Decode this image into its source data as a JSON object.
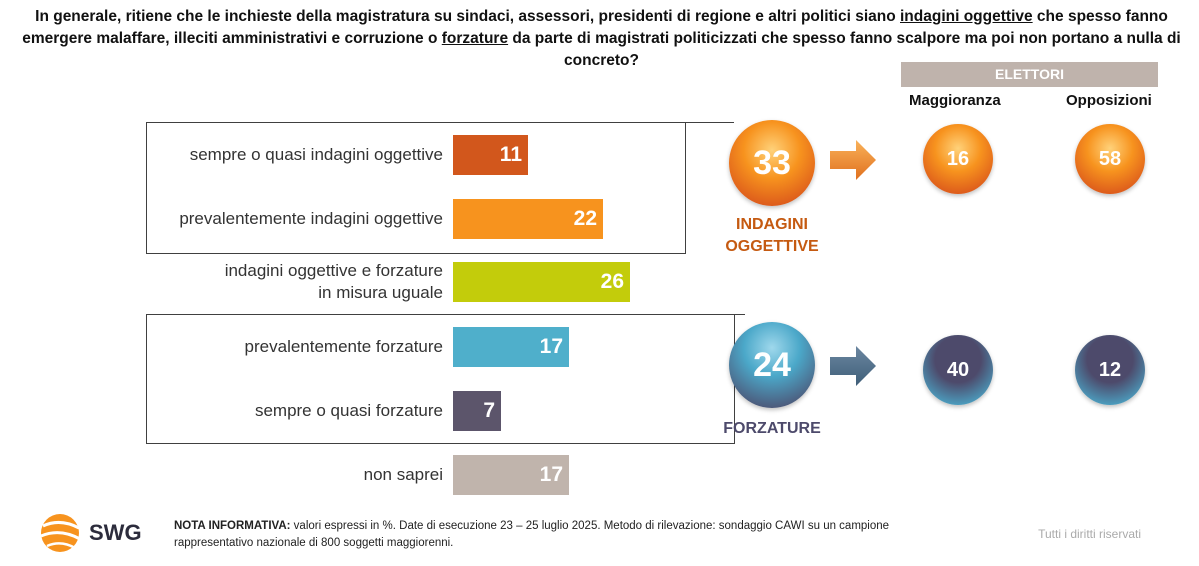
{
  "question": {
    "part1": "In generale, ritiene che le inchieste della magistratura su sindaci, assessori, presidenti di regione e altri politici siano ",
    "u1": "indagini oggettive",
    "part2": " che spesso fanno emergere malaffare, illeciti amministrativi e corruzione o ",
    "u2": "forzature",
    "part3": " da parte di magistrati politicizzati che spesso fanno scalpore ma poi non portano a nulla di concreto?"
  },
  "chart_data": {
    "type": "bar",
    "orientation": "horizontal",
    "unit": "%",
    "xlim": [
      0,
      36
    ],
    "categories": [
      "sempre o quasi indagini oggettive",
      "prevalentemente indagini oggettive",
      "indagini oggettive e forzature in misura uguale",
      "prevalentemente forzature",
      "sempre o quasi forzature",
      "non saprei"
    ],
    "labels_display": [
      [
        "sempre o quasi indagini oggettive"
      ],
      [
        "prevalentemente indagini oggettive"
      ],
      [
        "indagini oggettive e forzature",
        "in misura uguale"
      ],
      [
        "prevalentemente forzature"
      ],
      [
        "sempre o quasi forzature"
      ],
      [
        "non saprei"
      ]
    ],
    "values": [
      11,
      22,
      26,
      17,
      7,
      17
    ],
    "colors": [
      "#d2571c",
      "#f7931e",
      "#c3cc0b",
      "#4fafcb",
      "#5c556b",
      "#c0b4ac"
    ]
  },
  "summary": {
    "indagini": {
      "value": "33",
      "label_line1": "INDAGINI",
      "label_line2": "OGGETTIVE",
      "maggioranza": "16",
      "opposizioni": "58",
      "color": "#c55a11"
    },
    "forzature": {
      "value": "24",
      "label": "FORZATURE",
      "maggioranza": "40",
      "opposizioni": "12",
      "color": "#4d4a6b"
    }
  },
  "elettori": {
    "title": "ELETTORI",
    "col1": "Maggioranza",
    "col2": "Opposizioni"
  },
  "footer": {
    "brand": "SWG",
    "note_bold": "NOTA INFORMATIVA:",
    "note_line1": " valori espressi in %. Date di esecuzione 23 – 25 luglio 2025. Metodo di rilevazione: sondaggio CAWI su un campione",
    "note_line2": "rappresentativo nazionale di 800 soggetti maggiorenni.",
    "rights": "Tutti i diritti riservati"
  }
}
